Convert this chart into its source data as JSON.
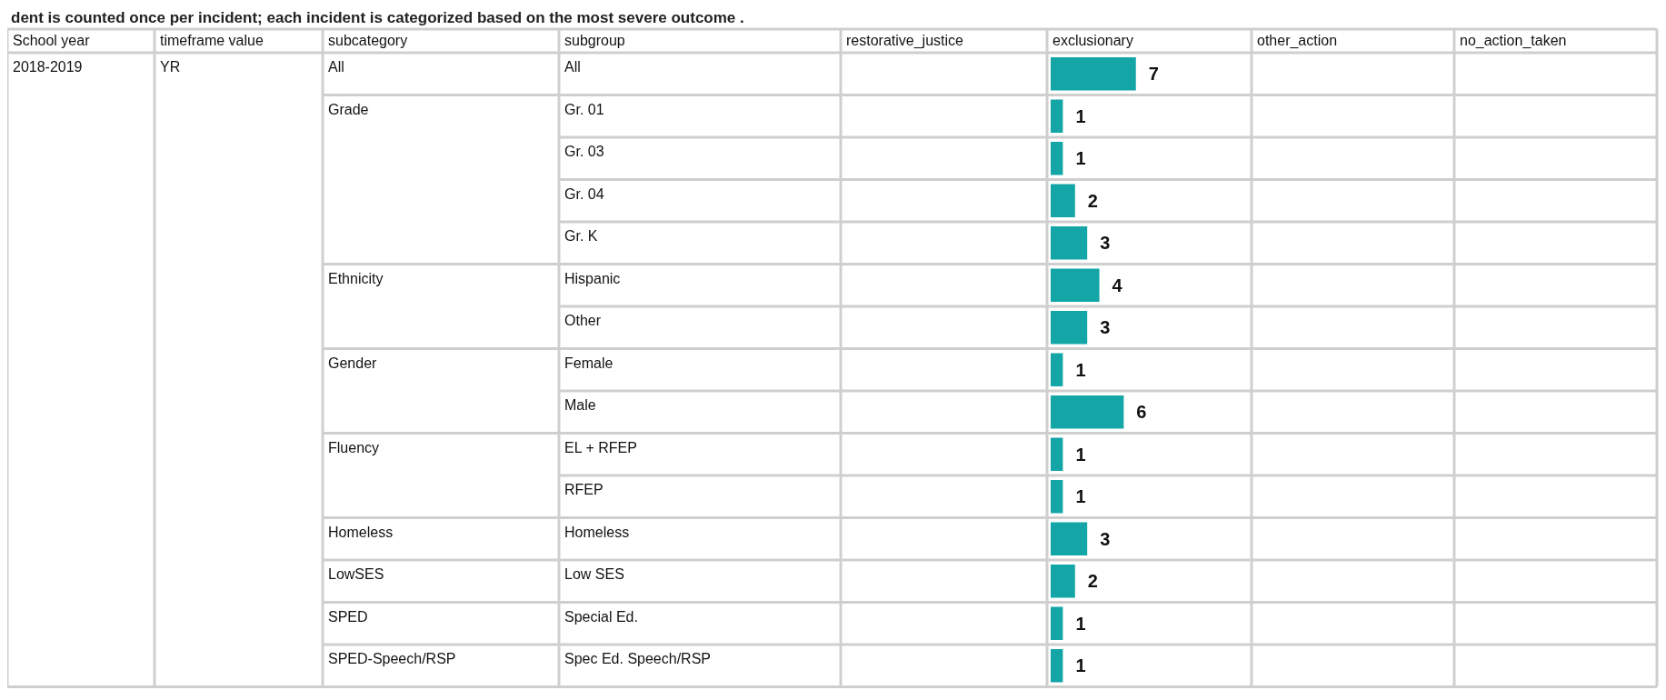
{
  "chart_data": {
    "type": "bar",
    "orientation": "horizontal",
    "data_labels": true,
    "title": "dent is counted once per incident; each incident is categorized based on the most severe outcome .",
    "xlabel": "exclusionary",
    "ylabel": "subgroup",
    "color": "#14a6a6",
    "categories": [
      "All",
      "Gr. 01",
      "Gr. 03",
      "Gr. 04",
      "Gr. K",
      "Hispanic",
      "Other",
      "Female",
      "Male",
      "EL + RFEP",
      "RFEP",
      "Homeless",
      "Low SES",
      "Special Ed.",
      "Spec Ed. Speech/RSP"
    ],
    "values": [
      7,
      1,
      1,
      2,
      3,
      4,
      3,
      1,
      6,
      1,
      1,
      3,
      2,
      1,
      1
    ],
    "annotations": [
      "School year",
      "timeframe value",
      "subcategory",
      "restorative_justice",
      "other_action",
      "no_action_taken",
      "2018-2019",
      "YR",
      "All",
      "Grade",
      "Ethnicity",
      "Gender",
      "Fluency",
      "Homeless",
      "LowSES",
      "SPED",
      "SPED-Speech/RSP"
    ]
  }
}
